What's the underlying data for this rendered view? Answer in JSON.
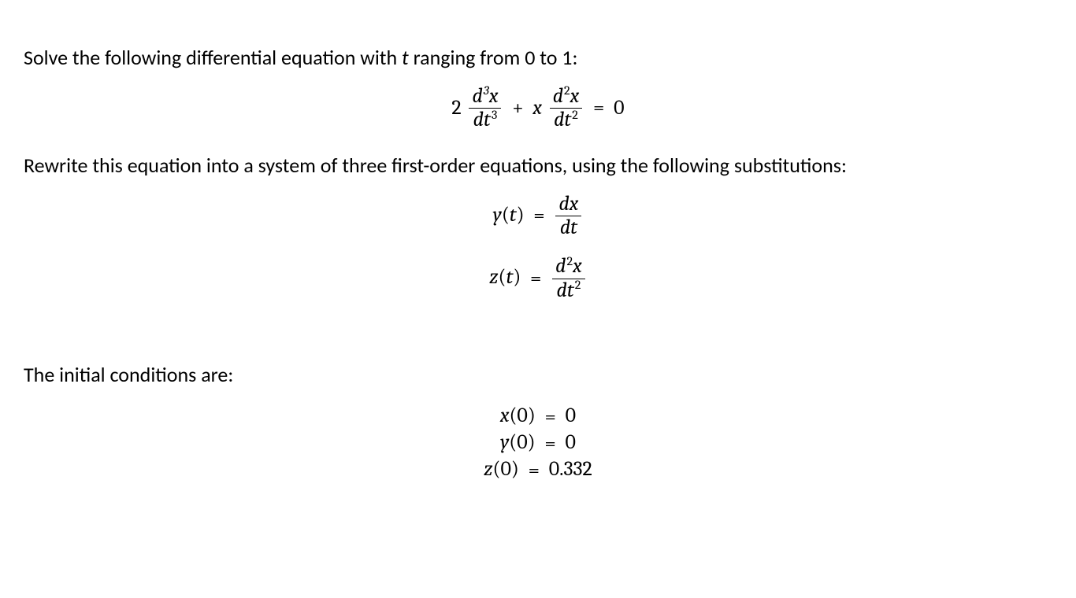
{
  "text": {
    "intro_pre": "Solve the following differential equation with ",
    "intro_var": "t",
    "intro_post": " ranging from 0 to 1:",
    "rewrite": "Rewrite this equation into a system of three first-order equations, using the following substitutions:",
    "ic_label": "The initial conditions are:"
  },
  "style": {
    "body_font": "Calibri",
    "math_font": "Cambria Math",
    "font_size_pt": 20,
    "text_color": "#000000",
    "background_color": "#ffffff"
  },
  "main_equation": {
    "terms": [
      {
        "coef": "2",
        "num": "d³x",
        "den": "dt³"
      },
      {
        "op": "+",
        "coef": "x",
        "num": "d²x",
        "den": "dt²"
      }
    ],
    "rhs_op": "=",
    "rhs": "0"
  },
  "substitutions": [
    {
      "lhs_fn": "y",
      "lhs_arg": "t",
      "num": "dx",
      "den": "dt"
    },
    {
      "lhs_fn": "z",
      "lhs_arg": "t",
      "num": "d²x",
      "den": "dt²"
    }
  ],
  "initial_conditions": [
    {
      "var": "x",
      "arg": "0",
      "val": "0"
    },
    {
      "var": "y",
      "arg": "0",
      "val": "0"
    },
    {
      "var": "z",
      "arg": "0",
      "val": "0.332"
    }
  ]
}
